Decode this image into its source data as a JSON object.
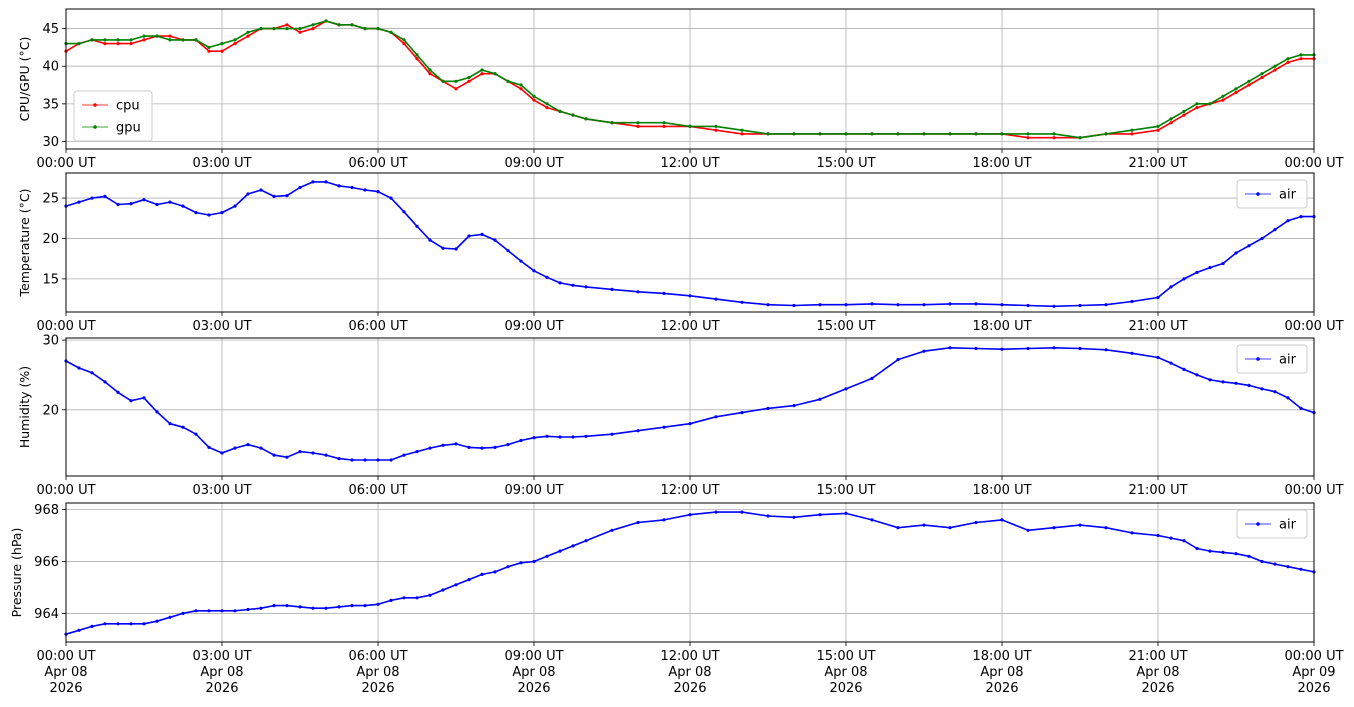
{
  "chart_data": [
    {
      "type": "line",
      "ylabel": "CPU/GPU (°C)",
      "ylim": [
        29,
        47.6
      ],
      "yticks": [
        30,
        35,
        40,
        45
      ],
      "grid": true,
      "legend": "lower-left",
      "series": [
        {
          "name": "cpu",
          "color": "#ff0000",
          "x": [
            0,
            0.25,
            0.5,
            0.75,
            1,
            1.25,
            1.5,
            1.75,
            2,
            2.25,
            2.5,
            2.75,
            3,
            3.25,
            3.5,
            3.75,
            4,
            4.25,
            4.5,
            4.75,
            5,
            5.25,
            5.5,
            5.75,
            6,
            6.25,
            6.5,
            6.75,
            7,
            7.25,
            7.5,
            7.75,
            8,
            8.25,
            8.5,
            8.75,
            9,
            9.25,
            9.5,
            9.75,
            10,
            10.5,
            11,
            11.5,
            12,
            12.5,
            13,
            13.5,
            14,
            14.5,
            15,
            15.5,
            16,
            16.5,
            17,
            17.5,
            18,
            18.5,
            19,
            19.5,
            20,
            20.5,
            21,
            21.25,
            21.5,
            21.75,
            22,
            22.25,
            22.5,
            22.75,
            23,
            23.25,
            23.5,
            23.75,
            24
          ],
          "y": [
            42,
            43,
            43.5,
            43,
            43,
            43,
            43.5,
            44,
            44,
            43.5,
            43.5,
            42,
            42,
            43,
            44,
            45,
            45,
            45.5,
            44.5,
            45,
            46,
            45.5,
            45.5,
            45,
            45,
            44.5,
            43,
            41,
            39,
            38,
            37,
            38,
            39,
            39,
            38,
            37,
            35.5,
            34.5,
            34,
            33.5,
            33,
            32.5,
            32,
            32,
            32,
            31.5,
            31,
            31,
            31,
            31,
            31,
            31,
            31,
            31,
            31,
            31,
            31,
            30.5,
            30.5,
            30.5,
            31,
            31,
            31.5,
            32.5,
            33.5,
            34.5,
            35,
            35.5,
            36.5,
            37.5,
            38.5,
            39.5,
            40.5,
            41,
            41
          ]
        },
        {
          "name": "gpu",
          "color": "#008000",
          "x": [
            0,
            0.25,
            0.5,
            0.75,
            1,
            1.25,
            1.5,
            1.75,
            2,
            2.25,
            2.5,
            2.75,
            3,
            3.25,
            3.5,
            3.75,
            4,
            4.25,
            4.5,
            4.75,
            5,
            5.25,
            5.5,
            5.75,
            6,
            6.25,
            6.5,
            6.75,
            7,
            7.25,
            7.5,
            7.75,
            8,
            8.25,
            8.5,
            8.75,
            9,
            9.25,
            9.5,
            9.75,
            10,
            10.5,
            11,
            11.5,
            12,
            12.5,
            13,
            13.5,
            14,
            14.5,
            15,
            15.5,
            16,
            16.5,
            17,
            17.5,
            18,
            18.5,
            19,
            19.5,
            20,
            20.5,
            21,
            21.25,
            21.5,
            21.75,
            22,
            22.25,
            22.5,
            22.75,
            23,
            23.25,
            23.5,
            23.75,
            24
          ],
          "y": [
            43,
            43,
            43.5,
            43.5,
            43.5,
            43.5,
            44,
            44,
            43.5,
            43.5,
            43.5,
            42.5,
            43,
            43.5,
            44.5,
            45,
            45,
            45,
            45,
            45.5,
            46,
            45.5,
            45.5,
            45,
            45,
            44.5,
            43.5,
            41.5,
            39.5,
            38,
            38,
            38.5,
            39.5,
            39,
            38,
            37.5,
            36,
            35,
            34,
            33.5,
            33,
            32.5,
            32.5,
            32.5,
            32,
            32,
            31.5,
            31,
            31,
            31,
            31,
            31,
            31,
            31,
            31,
            31,
            31,
            31,
            31,
            30.5,
            31,
            31.5,
            32,
            33,
            34,
            35,
            35,
            36,
            37,
            38,
            39,
            40,
            41,
            41.5,
            41.5
          ]
        }
      ]
    },
    {
      "type": "line",
      "ylabel": "Temperature (°C)",
      "ylim": [
        10.9,
        28.1
      ],
      "yticks": [
        15,
        20,
        25
      ],
      "grid": true,
      "legend": "top-right",
      "series": [
        {
          "name": "air",
          "color": "#0000ff",
          "x": [
            0,
            0.25,
            0.5,
            0.75,
            1,
            1.25,
            1.5,
            1.75,
            2,
            2.25,
            2.5,
            2.75,
            3,
            3.25,
            3.5,
            3.75,
            4,
            4.25,
            4.5,
            4.75,
            5,
            5.25,
            5.5,
            5.75,
            6,
            6.25,
            6.5,
            6.75,
            7,
            7.25,
            7.5,
            7.75,
            8,
            8.25,
            8.5,
            8.75,
            9,
            9.25,
            9.5,
            9.75,
            10,
            10.5,
            11,
            11.5,
            12,
            12.5,
            13,
            13.5,
            14,
            14.5,
            15,
            15.5,
            16,
            16.5,
            17,
            17.5,
            18,
            18.5,
            19,
            19.5,
            20,
            20.5,
            21,
            21.25,
            21.5,
            21.75,
            22,
            22.25,
            22.5,
            22.75,
            23,
            23.25,
            23.5,
            23.75,
            24
          ],
          "y": [
            24,
            24.5,
            25,
            25.2,
            24.2,
            24.3,
            24.8,
            24.2,
            24.5,
            24,
            23.2,
            22.9,
            23.2,
            24,
            25.5,
            26,
            25.2,
            25.3,
            26.3,
            27,
            27,
            26.5,
            26.3,
            26,
            25.8,
            25,
            23.3,
            21.5,
            19.8,
            18.8,
            18.7,
            20.3,
            20.5,
            19.8,
            18.5,
            17.2,
            16,
            15.2,
            14.5,
            14.2,
            14,
            13.7,
            13.4,
            13.2,
            12.9,
            12.5,
            12.1,
            11.8,
            11.7,
            11.8,
            11.8,
            11.9,
            11.8,
            11.8,
            11.9,
            11.9,
            11.8,
            11.7,
            11.6,
            11.7,
            11.8,
            12.2,
            12.7,
            14,
            15,
            15.8,
            16.4,
            16.9,
            18.2,
            19.1,
            20,
            21.1,
            22.2,
            22.7,
            22.7
          ]
        }
      ]
    },
    {
      "type": "line",
      "ylabel": "Humidity (%)",
      "ylim": [
        10.5,
        30.3
      ],
      "yticks": [
        20,
        30
      ],
      "grid": true,
      "legend": "top-right",
      "series": [
        {
          "name": "air",
          "color": "#0000ff",
          "x": [
            0,
            0.25,
            0.5,
            0.75,
            1,
            1.25,
            1.5,
            1.75,
            2,
            2.25,
            2.5,
            2.75,
            3,
            3.25,
            3.5,
            3.75,
            4,
            4.25,
            4.5,
            4.75,
            5,
            5.25,
            5.5,
            5.75,
            6,
            6.25,
            6.5,
            6.75,
            7,
            7.25,
            7.5,
            7.75,
            8,
            8.25,
            8.5,
            8.75,
            9,
            9.25,
            9.5,
            9.75,
            10,
            10.5,
            11,
            11.5,
            12,
            12.5,
            13,
            13.5,
            14,
            14.5,
            15,
            15.5,
            16,
            16.5,
            17,
            17.5,
            18,
            18.5,
            19,
            19.5,
            20,
            20.5,
            21,
            21.25,
            21.5,
            21.75,
            22,
            22.25,
            22.5,
            22.75,
            23,
            23.25,
            23.5,
            23.75,
            24
          ],
          "y": [
            27,
            26,
            25.3,
            24,
            22.5,
            21.3,
            21.7,
            19.7,
            18,
            17.5,
            16.5,
            14.6,
            13.8,
            14.5,
            15,
            14.5,
            13.5,
            13.2,
            14,
            13.8,
            13.5,
            13,
            12.8,
            12.8,
            12.8,
            12.8,
            13.5,
            14,
            14.5,
            14.9,
            15.1,
            14.6,
            14.5,
            14.6,
            15,
            15.6,
            16,
            16.2,
            16.1,
            16.1,
            16.2,
            16.5,
            17,
            17.5,
            18,
            19,
            19.6,
            20.2,
            20.6,
            21.5,
            23,
            24.5,
            27.2,
            28.4,
            28.9,
            28.8,
            28.7,
            28.8,
            28.9,
            28.8,
            28.6,
            28.1,
            27.5,
            26.7,
            25.8,
            25,
            24.3,
            24,
            23.8,
            23.5,
            23,
            22.6,
            21.7,
            20.2,
            19.6
          ]
        }
      ]
    },
    {
      "type": "line",
      "ylabel": "Pressure (hPa)",
      "ylim": [
        962.9,
        968.25
      ],
      "yticks": [
        964,
        966,
        968
      ],
      "grid": true,
      "legend": "top-right",
      "series": [
        {
          "name": "air",
          "color": "#0000ff",
          "x": [
            0,
            0.25,
            0.5,
            0.75,
            1,
            1.25,
            1.5,
            1.75,
            2,
            2.25,
            2.5,
            2.75,
            3,
            3.25,
            3.5,
            3.75,
            4,
            4.25,
            4.5,
            4.75,
            5,
            5.25,
            5.5,
            5.75,
            6,
            6.25,
            6.5,
            6.75,
            7,
            7.25,
            7.5,
            7.75,
            8,
            8.25,
            8.5,
            8.75,
            9,
            9.25,
            9.5,
            9.75,
            10,
            10.5,
            11,
            11.5,
            12,
            12.5,
            13,
            13.5,
            14,
            14.5,
            15,
            15.5,
            16,
            16.5,
            17,
            17.5,
            18,
            18.5,
            19,
            19.5,
            20,
            20.5,
            21,
            21.25,
            21.5,
            21.75,
            22,
            22.25,
            22.5,
            22.75,
            23,
            23.25,
            23.5,
            23.75,
            24
          ],
          "y": [
            963.2,
            963.35,
            963.5,
            963.6,
            963.6,
            963.6,
            963.6,
            963.7,
            963.85,
            964,
            964.1,
            964.1,
            964.1,
            964.1,
            964.15,
            964.2,
            964.3,
            964.3,
            964.25,
            964.2,
            964.2,
            964.25,
            964.3,
            964.3,
            964.35,
            964.5,
            964.6,
            964.6,
            964.7,
            964.9,
            965.1,
            965.3,
            965.5,
            965.6,
            965.8,
            965.95,
            966.0,
            966.2,
            966.4,
            966.6,
            966.8,
            967.2,
            967.5,
            967.6,
            967.8,
            967.9,
            967.9,
            967.75,
            967.7,
            967.8,
            967.85,
            967.6,
            967.3,
            967.4,
            967.3,
            967.5,
            967.6,
            967.2,
            967.3,
            967.4,
            967.3,
            967.1,
            967.0,
            966.9,
            966.8,
            966.5,
            966.4,
            966.35,
            966.3,
            966.2,
            966.0,
            965.9,
            965.8,
            965.7,
            965.6
          ]
        }
      ]
    }
  ],
  "x_axis": {
    "xlim": [
      0,
      24
    ],
    "ticks": [
      0,
      3,
      6,
      9,
      12,
      15,
      18,
      21,
      24
    ],
    "tick_labels": [
      "00:00 UT",
      "03:00 UT",
      "06:00 UT",
      "09:00 UT",
      "12:00 UT",
      "15:00 UT",
      "18:00 UT",
      "21:00 UT",
      "00:00 UT"
    ],
    "date_labels": [
      "Apr 08",
      "Apr 08",
      "Apr 08",
      "Apr 08",
      "Apr 08",
      "Apr 08",
      "Apr 08",
      "Apr 08",
      "Apr 09"
    ],
    "year_labels": [
      "2026",
      "2026",
      "2026",
      "2026",
      "2026",
      "2026",
      "2026",
      "2026",
      "2026"
    ]
  }
}
